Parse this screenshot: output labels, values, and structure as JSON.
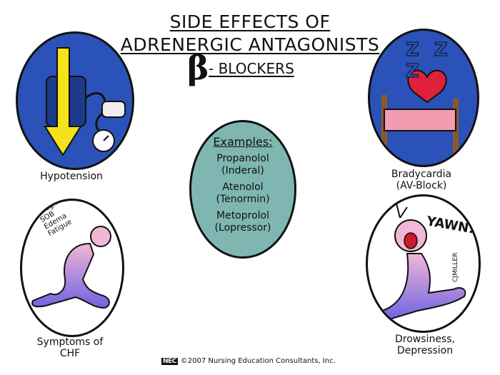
{
  "title": {
    "line1": "SIDE EFFECTS OF",
    "line2": "ADRENERGIC ANTAGONISTS",
    "beta_symbol": "β",
    "line3": "- BLOCKERS"
  },
  "panels": {
    "hypotension": {
      "caption": "Hypotension"
    },
    "bradycardia": {
      "caption_line1": "Bradycardia",
      "caption_line2": "(AV-Block)",
      "sleep_text": "Z Z Z"
    },
    "chf": {
      "caption_line1": "Symptoms of",
      "caption_line2": "CHF",
      "symptoms": [
        "Coughing",
        "SOB",
        "Edema",
        "Fatigue"
      ]
    },
    "drowsiness": {
      "caption_line1": "Drowsiness,",
      "caption_line2": "Depression",
      "yawn_text": "YAWN!",
      "signature": "CJMILLER"
    }
  },
  "examples": {
    "heading": "Examples:",
    "drugs": [
      {
        "name": "Propanolol",
        "brand": "(Inderal)"
      },
      {
        "name": "Atenolol",
        "brand": "(Tenormin)"
      },
      {
        "name": "Metoprolol",
        "brand": "(Lopressor)"
      }
    ]
  },
  "footer": {
    "logo_text": "NEC",
    "copyright": "©2007 Nursing Education Consultants, Inc."
  },
  "colors": {
    "oval_blue": "#2a52b8",
    "examples_teal": "#7fb6b2",
    "arrow_yellow": "#f4e21a",
    "heart_red": "#e0213a",
    "figure_pink": "#f2b7d6",
    "figure_purple": "#6f62e0"
  }
}
